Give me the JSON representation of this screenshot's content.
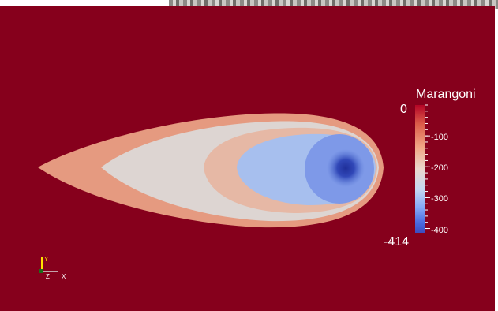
{
  "colorbar": {
    "title": "Marangoni",
    "range_max": "0",
    "range_min": "-414",
    "ticks": [
      {
        "label": "-100",
        "value": -100
      },
      {
        "label": "-200",
        "value": -200
      },
      {
        "label": "-300",
        "value": -300
      },
      {
        "label": "-400",
        "value": -400
      }
    ],
    "max_value": 0,
    "min_value": -414,
    "colors": [
      "#b40426",
      "#dc5d4a",
      "#f1a686",
      "#ebd7cd",
      "#c5d7f0",
      "#86a9f7",
      "#4a6ae0",
      "#3b4cc0"
    ]
  },
  "orientation_axes": {
    "y_label": "Y",
    "z_label": "Z",
    "x_label": "X"
  },
  "colors": {
    "background": "#86001c",
    "axis_y": "#ffe000",
    "axis_x": "#d9d9d9",
    "axis_z": "#1a6e1a"
  }
}
